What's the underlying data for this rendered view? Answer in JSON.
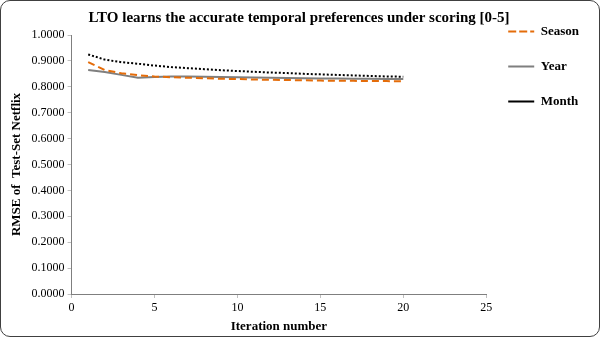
{
  "chart_data": {
    "type": "line",
    "title": "LTO learns the accurate temporal preferences under scoring [0-5]",
    "x_label": "Iteration number",
    "y_label": "RMSE of  Test-Set Netflix",
    "x": [
      1,
      2,
      3,
      4,
      5,
      6,
      7,
      8,
      9,
      10,
      11,
      12,
      13,
      14,
      15,
      16,
      17,
      18,
      19,
      20
    ],
    "series": [
      {
        "name": "Season",
        "color": "#e46c0a",
        "line_style": "dashed",
        "marker": "none",
        "values": [
          0.895,
          0.865,
          0.852,
          0.845,
          0.84,
          0.837,
          0.835,
          0.833,
          0.831,
          0.83,
          0.828,
          0.827,
          0.826,
          0.825,
          0.824,
          0.823,
          0.823,
          0.822,
          0.822,
          0.821
        ]
      },
      {
        "name": "Year",
        "color": "#7f7f7f",
        "line_style": "solid",
        "marker": "none",
        "values": [
          0.865,
          0.857,
          0.846,
          0.835,
          0.838,
          0.84,
          0.84,
          0.839,
          0.838,
          0.837,
          0.836,
          0.835,
          0.834,
          0.833,
          0.832,
          0.832,
          0.831,
          0.831,
          0.83,
          0.83
        ]
      },
      {
        "name": "Month",
        "color": "#000000",
        "line_style": "dotted",
        "marker": "none",
        "values": [
          0.925,
          0.905,
          0.895,
          0.889,
          0.882,
          0.876,
          0.872,
          0.868,
          0.864,
          0.861,
          0.858,
          0.855,
          0.853,
          0.85,
          0.848,
          0.846,
          0.844,
          0.842,
          0.84,
          0.839
        ]
      }
    ],
    "xlim": [
      0,
      25
    ],
    "xticks": [
      0,
      5,
      10,
      15,
      20,
      25
    ],
    "ylim": [
      0,
      1
    ],
    "yticks": [
      {
        "value": 0,
        "label": "0.0000"
      },
      {
        "value": 0.1,
        "label": "0.1000"
      },
      {
        "value": 0.2,
        "label": "0.2000"
      },
      {
        "value": 0.3,
        "label": "0.3000"
      },
      {
        "value": 0.4,
        "label": "0.4000"
      },
      {
        "value": 0.5,
        "label": "0.5000"
      },
      {
        "value": 0.6,
        "label": "0.6000"
      },
      {
        "value": 0.7,
        "label": "0.7000"
      },
      {
        "value": 0.8,
        "label": "0.8000"
      },
      {
        "value": 0.9,
        "label": "0.9000"
      },
      {
        "value": 1,
        "label": "1.0000"
      }
    ],
    "grid": false,
    "legend": "right"
  }
}
